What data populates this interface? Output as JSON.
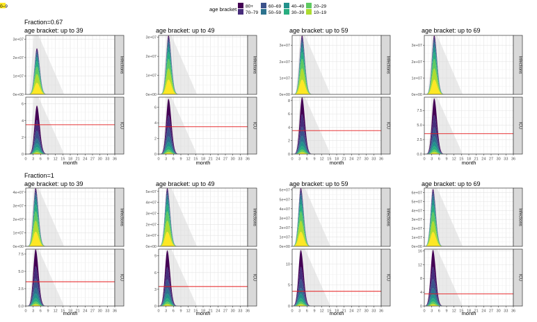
{
  "legend": {
    "title": "age bracket",
    "items": [
      {
        "label": "80+",
        "color": "#440154"
      },
      {
        "label": "70–79",
        "color": "#472d7b"
      },
      {
        "label": "60–69",
        "color": "#3b528b"
      },
      {
        "label": "50–59",
        "color": "#2c728e"
      },
      {
        "label": "40–49",
        "color": "#21918c"
      },
      {
        "label": "30–39",
        "color": "#28ae80"
      },
      {
        "label": "20–29",
        "color": "#5ec962"
      },
      {
        "label": "10–19",
        "color": "#addc30"
      },
      {
        "label": "0–9",
        "color": "#fde725"
      }
    ]
  },
  "chart_data": {
    "type": "area",
    "xlabel": "month",
    "x_ticks": [
      "0",
      "3",
      "6",
      "9",
      "12",
      "15",
      "18",
      "21",
      "24",
      "27",
      "30",
      "33",
      "36"
    ],
    "xlim": [
      0,
      36
    ],
    "strip_labels": [
      "Infections",
      "ICU"
    ],
    "icu_threshold": 3.5,
    "threshold_color": "#e41a1c",
    "unmitigated_band_color": "#d9d9d9",
    "rows": [
      {
        "title": "Fraction=0.67",
        "panels": [
          {
            "title": "age bracket:  up to 39",
            "peak_month": 4.5,
            "infections": {
              "ylim": [
                0,
                32000000.0
              ],
              "peak": 25000000.0,
              "ticks": [
                "0e+00",
                "1e+07",
                "2e+07",
                "3e+07"
              ],
              "tick_values": [
                0,
                10000000.0,
                20000000.0,
                30000000.0
              ]
            },
            "icu": {
              "ylim": [
                0,
                6.8
              ],
              "peak": 5.8,
              "ticks": [
                "0",
                "2",
                "4",
                "6"
              ],
              "tick_values": [
                0,
                2,
                4,
                6
              ]
            }
          },
          {
            "title": "age bracket:  up to 49",
            "peak_month": 4,
            "infections": {
              "ylim": [
                0,
                31000000.0
              ],
              "peak": 31000000.0,
              "ticks": [
                "0e+00",
                "1e+07",
                "2e+07",
                "3e+07"
              ],
              "tick_values": [
                0,
                10000000.0,
                20000000.0,
                30000000.0
              ]
            },
            "icu": {
              "ylim": [
                0,
                7.3
              ],
              "peak": 7.1,
              "ticks": [
                "0",
                "2",
                "4",
                "6"
              ],
              "tick_values": [
                0,
                2,
                4,
                6
              ]
            }
          },
          {
            "title": "age bracket:  up to 59",
            "peak_month": 4,
            "infections": {
              "ylim": [
                0,
                36000000.0
              ],
              "peak": 36000000.0,
              "ticks": [
                "0e+00",
                "1e+07",
                "2e+07",
                "3e+07"
              ],
              "tick_values": [
                0,
                10000000.0,
                20000000.0,
                30000000.0
              ]
            },
            "icu": {
              "ylim": [
                0,
                8.5
              ],
              "peak": 8.5,
              "ticks": [
                "0",
                "2",
                "4",
                "6",
                "8"
              ],
              "tick_values": [
                0,
                2,
                4,
                6,
                8
              ]
            }
          },
          {
            "title": "age bracket:  up to 69",
            "peak_month": 4,
            "infections": {
              "ylim": [
                0,
                36000000.0
              ],
              "peak": 36000000.0,
              "ticks": [
                "0e+00",
                "1e+07",
                "2e+07",
                "3e+07"
              ],
              "tick_values": [
                0,
                10000000.0,
                20000000.0,
                30000000.0
              ]
            },
            "icu": {
              "ylim": [
                0,
                9.8
              ],
              "peak": 9.6,
              "ticks": [
                "0.0",
                "2.5",
                "5.0",
                "7.5"
              ],
              "tick_values": [
                0,
                2.5,
                5,
                7.5
              ]
            }
          }
        ]
      },
      {
        "title": "Fraction=1",
        "panels": [
          {
            "title": "age bracket:  up to 39",
            "peak_month": 4,
            "infections": {
              "ylim": [
                0,
                43000000.0
              ],
              "peak": 43000000.0,
              "ticks": [
                "0e+00",
                "1e+07",
                "2e+07",
                "3e+07",
                "4e+07"
              ],
              "tick_values": [
                0,
                10000000.0,
                20000000.0,
                30000000.0,
                40000000.0
              ]
            },
            "icu": {
              "ylim": [
                0,
                8.2
              ],
              "peak": 8.2,
              "ticks": [
                "0.0",
                "2.5",
                "5.0",
                "7.5"
              ],
              "tick_values": [
                0,
                2.5,
                5,
                7.5
              ]
            }
          },
          {
            "title": "age bracket:  up to 49",
            "peak_month": 3.5,
            "infections": {
              "ylim": [
                0,
                53000000.0
              ],
              "peak": 53000000.0,
              "ticks": [
                "0e+00",
                "1e+07",
                "2e+07",
                "3e+07",
                "4e+07",
                "5e+07"
              ],
              "tick_values": [
                0,
                10000000.0,
                20000000.0,
                30000000.0,
                40000000.0,
                50000000.0
              ]
            },
            "icu": {
              "ylim": [
                0,
                10.2
              ],
              "peak": 10,
              "ticks": [
                "0",
                "3",
                "6",
                "9"
              ],
              "tick_values": [
                0,
                3,
                6,
                9
              ]
            }
          },
          {
            "title": "age bracket:  up to 59",
            "peak_month": 3.5,
            "infections": {
              "ylim": [
                0,
                62000000.0
              ],
              "peak": 62000000.0,
              "ticks": [
                "0e+00",
                "1e+07",
                "2e+07",
                "3e+07",
                "4e+07",
                "5e+07",
                "6e+07"
              ],
              "tick_values": [
                0,
                10000000.0,
                20000000.0,
                30000000.0,
                40000000.0,
                50000000.0,
                60000000.0
              ]
            },
            "icu": {
              "ylim": [
                0,
                13.5
              ],
              "peak": 13.3,
              "ticks": [
                "0",
                "5",
                "10"
              ],
              "tick_values": [
                0,
                5,
                10
              ]
            }
          },
          {
            "title": "age bracket:  up to 69",
            "peak_month": 3.5,
            "infections": {
              "ylim": [
                0,
                65000000.0
              ],
              "peak": 64000000.0,
              "ticks": [
                "0e+00",
                "1e+07",
                "2e+07",
                "3e+07",
                "4e+07",
                "5e+07",
                "6e+07"
              ],
              "tick_values": [
                0,
                10000000.0,
                20000000.0,
                30000000.0,
                40000000.0,
                50000000.0,
                60000000.0
              ]
            },
            "icu": {
              "ylim": [
                0,
                16.5
              ],
              "peak": 16.3,
              "ticks": [
                "0",
                "4",
                "8",
                "12",
                "16"
              ],
              "tick_values": [
                0,
                4,
                8,
                12,
                16
              ]
            }
          }
        ]
      }
    ]
  }
}
